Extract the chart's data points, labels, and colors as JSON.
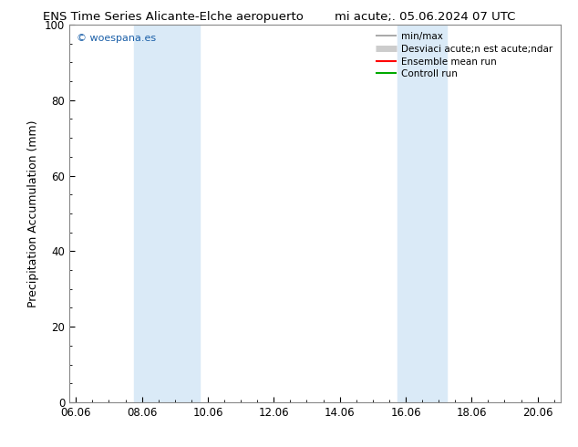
{
  "title_left": "ENS Time Series Alicante-Elche aeropuerto",
  "title_right": "mi acute;. 05.06.2024 07 UTC",
  "ylabel": "Precipitation Accumulation (mm)",
  "ylim": [
    0,
    100
  ],
  "yticks": [
    0,
    20,
    40,
    60,
    80,
    100
  ],
  "xtick_labels": [
    "06.06",
    "08.06",
    "10.06",
    "12.06",
    "14.06",
    "16.06",
    "18.06",
    "20.06"
  ],
  "xtick_positions": [
    0,
    2,
    4,
    6,
    8,
    10,
    12,
    14
  ],
  "xlim": [
    -0.2,
    14.7
  ],
  "shaded_bands": [
    {
      "x_start": 1.75,
      "x_end": 3.75,
      "color": "#daeaf7"
    },
    {
      "x_start": 9.75,
      "x_end": 11.25,
      "color": "#daeaf7"
    }
  ],
  "watermark": "© woespana.es",
  "watermark_color": "#1a5fa8",
  "legend_labels": [
    "min/max",
    "Desviaci acute;n est acute;ndar",
    "Ensemble mean run",
    "Controll run"
  ],
  "legend_colors": [
    "#999999",
    "#cccccc",
    "#ff0000",
    "#00aa00"
  ],
  "legend_linewidths": [
    1.2,
    5,
    1.5,
    1.5
  ],
  "bg_color": "#ffffff",
  "tick_fontsize": 8.5,
  "label_fontsize": 9,
  "title_fontsize": 9.5,
  "legend_fontsize": 7.5
}
